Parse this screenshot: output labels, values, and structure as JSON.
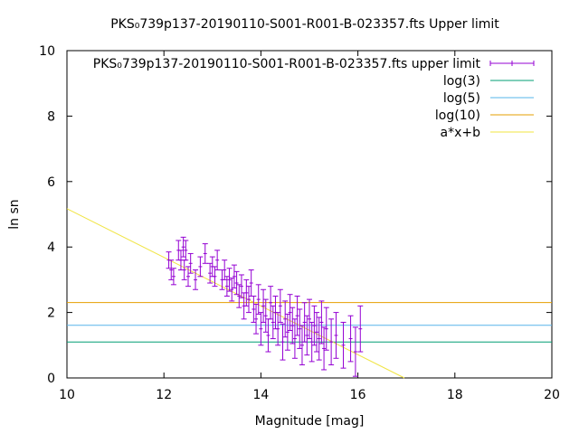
{
  "chart_data": {
    "type": "scatter",
    "title": "PKS₀739p137-20190110-S001-R001-B-023357.fts Upper limit",
    "xlabel": "Magnitude [mag]",
    "ylabel": "ln sn",
    "xlim": [
      10,
      20
    ],
    "ylim": [
      0,
      10
    ],
    "xticks": [
      "10",
      "12",
      "14",
      "16",
      "18",
      "20"
    ],
    "yticks": [
      "0",
      "2",
      "4",
      "6",
      "8",
      "10"
    ],
    "grid": false,
    "legend_position": "top-right",
    "colors": {
      "points": "#9400d3",
      "log3": "#009e73",
      "log5": "#56b4e9",
      "log10": "#e69f00",
      "fit": "#f0e442"
    },
    "series": [
      {
        "name": "PKS₀739p137-20190110-S001-R001-B-023357.fts upper limit",
        "kind": "errorbars",
        "points": [
          {
            "x": 12.1,
            "y": 3.6,
            "e": 0.25
          },
          {
            "x": 12.15,
            "y": 3.3,
            "e": 0.3
          },
          {
            "x": 12.2,
            "y": 3.1,
            "e": 0.25
          },
          {
            "x": 12.3,
            "y": 3.9,
            "e": 0.3
          },
          {
            "x": 12.35,
            "y": 3.6,
            "e": 0.3
          },
          {
            "x": 12.4,
            "y": 4.0,
            "e": 0.3
          },
          {
            "x": 12.42,
            "y": 3.3,
            "e": 0.3
          },
          {
            "x": 12.45,
            "y": 3.9,
            "e": 0.3
          },
          {
            "x": 12.5,
            "y": 3.1,
            "e": 0.3
          },
          {
            "x": 12.55,
            "y": 3.5,
            "e": 0.3
          },
          {
            "x": 12.65,
            "y": 3.0,
            "e": 0.3
          },
          {
            "x": 12.75,
            "y": 3.4,
            "e": 0.3
          },
          {
            "x": 12.85,
            "y": 3.8,
            "e": 0.3
          },
          {
            "x": 12.95,
            "y": 3.2,
            "e": 0.3
          },
          {
            "x": 13.0,
            "y": 3.4,
            "e": 0.3
          },
          {
            "x": 13.05,
            "y": 3.1,
            "e": 0.3
          },
          {
            "x": 13.1,
            "y": 3.6,
            "e": 0.3
          },
          {
            "x": 13.2,
            "y": 3.0,
            "e": 0.3
          },
          {
            "x": 13.25,
            "y": 3.3,
            "e": 0.3
          },
          {
            "x": 13.3,
            "y": 2.8,
            "e": 0.3
          },
          {
            "x": 13.35,
            "y": 3.0,
            "e": 0.35
          },
          {
            "x": 13.4,
            "y": 2.7,
            "e": 0.35
          },
          {
            "x": 13.45,
            "y": 3.1,
            "e": 0.35
          },
          {
            "x": 13.5,
            "y": 2.9,
            "e": 0.35
          },
          {
            "x": 13.55,
            "y": 2.5,
            "e": 0.35
          },
          {
            "x": 13.6,
            "y": 2.8,
            "e": 0.35
          },
          {
            "x": 13.65,
            "y": 2.2,
            "e": 0.4
          },
          {
            "x": 13.7,
            "y": 2.6,
            "e": 0.4
          },
          {
            "x": 13.75,
            "y": 2.4,
            "e": 0.4
          },
          {
            "x": 13.8,
            "y": 2.9,
            "e": 0.4
          },
          {
            "x": 13.85,
            "y": 2.1,
            "e": 0.4
          },
          {
            "x": 13.9,
            "y": 1.8,
            "e": 0.45
          },
          {
            "x": 13.95,
            "y": 2.4,
            "e": 0.45
          },
          {
            "x": 14.0,
            "y": 1.5,
            "e": 0.5
          },
          {
            "x": 14.05,
            "y": 2.2,
            "e": 0.5
          },
          {
            "x": 14.1,
            "y": 1.9,
            "e": 0.5
          },
          {
            "x": 14.15,
            "y": 1.3,
            "e": 0.5
          },
          {
            "x": 14.2,
            "y": 2.3,
            "e": 0.5
          },
          {
            "x": 14.25,
            "y": 1.7,
            "e": 0.5
          },
          {
            "x": 14.3,
            "y": 2.0,
            "e": 0.5
          },
          {
            "x": 14.35,
            "y": 1.5,
            "e": 0.5
          },
          {
            "x": 14.4,
            "y": 2.2,
            "e": 0.5
          },
          {
            "x": 14.45,
            "y": 1.1,
            "e": 0.55
          },
          {
            "x": 14.5,
            "y": 1.8,
            "e": 0.55
          },
          {
            "x": 14.55,
            "y": 1.4,
            "e": 0.55
          },
          {
            "x": 14.6,
            "y": 2.0,
            "e": 0.55
          },
          {
            "x": 14.65,
            "y": 1.6,
            "e": 0.55
          },
          {
            "x": 14.7,
            "y": 1.2,
            "e": 0.6
          },
          {
            "x": 14.75,
            "y": 1.9,
            "e": 0.6
          },
          {
            "x": 14.8,
            "y": 1.5,
            "e": 0.6
          },
          {
            "x": 14.85,
            "y": 1.0,
            "e": 0.6
          },
          {
            "x": 14.9,
            "y": 1.7,
            "e": 0.6
          },
          {
            "x": 14.95,
            "y": 1.3,
            "e": 0.6
          },
          {
            "x": 15.0,
            "y": 1.8,
            "e": 0.6
          },
          {
            "x": 15.05,
            "y": 1.1,
            "e": 0.6
          },
          {
            "x": 15.1,
            "y": 1.6,
            "e": 0.6
          },
          {
            "x": 15.15,
            "y": 1.4,
            "e": 0.6
          },
          {
            "x": 15.2,
            "y": 1.2,
            "e": 0.65
          },
          {
            "x": 15.25,
            "y": 1.7,
            "e": 0.65
          },
          {
            "x": 15.3,
            "y": 0.9,
            "e": 0.65
          },
          {
            "x": 15.35,
            "y": 1.5,
            "e": 0.65
          },
          {
            "x": 15.45,
            "y": 1.1,
            "e": 0.7
          },
          {
            "x": 15.55,
            "y": 1.3,
            "e": 0.7
          },
          {
            "x": 15.7,
            "y": 1.0,
            "e": 0.7
          },
          {
            "x": 15.85,
            "y": 1.2,
            "e": 0.7
          },
          {
            "x": 15.95,
            "y": 0.8,
            "e": 0.75
          },
          {
            "x": 16.05,
            "y": 1.5,
            "e": 0.7
          }
        ]
      },
      {
        "name": "log(3)",
        "kind": "hline",
        "y": 1.0986
      },
      {
        "name": "log(5)",
        "kind": "hline",
        "y": 1.6094
      },
      {
        "name": "log(10)",
        "kind": "hline",
        "y": 2.3026
      },
      {
        "name": "a*x+b",
        "kind": "fitline",
        "slope": -0.743,
        "intercept": 12.6
      }
    ]
  }
}
